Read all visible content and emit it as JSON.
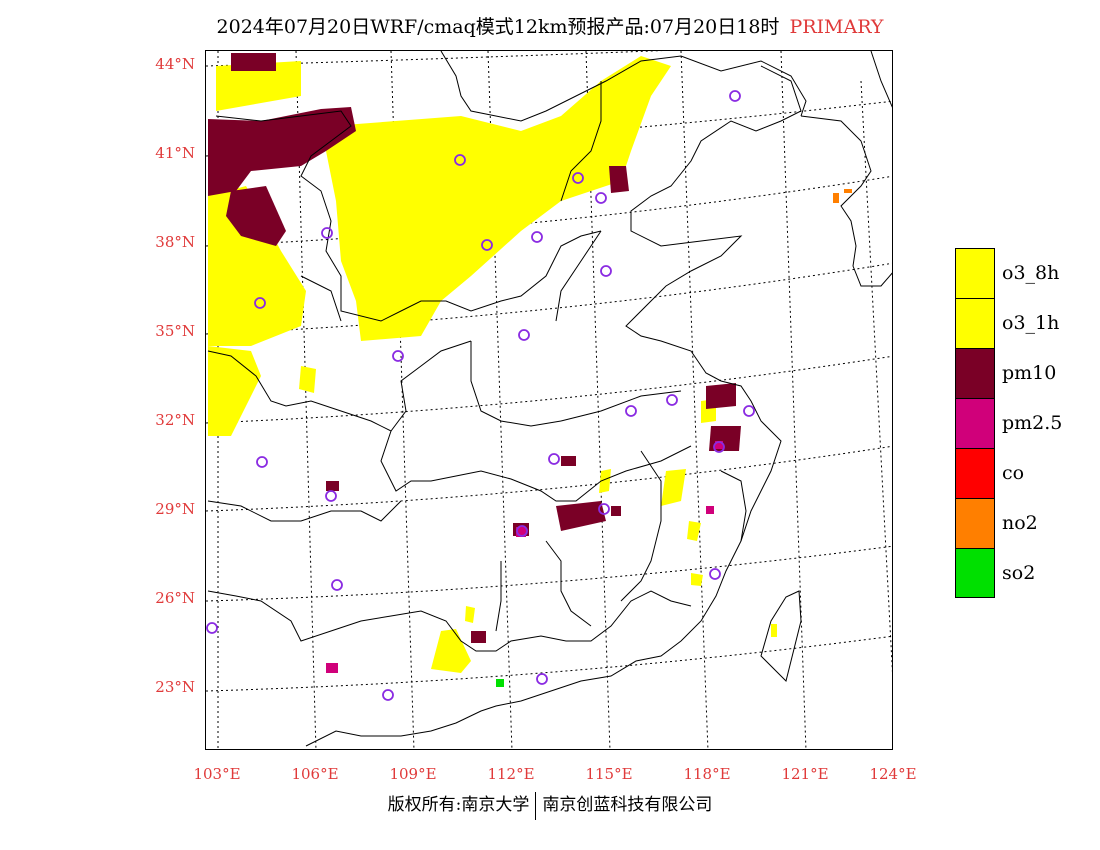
{
  "title": {
    "main": "2024年07月20日WRF/cmaq模式12km预报产品:07月20日18时",
    "tag": "PRIMARY"
  },
  "axes": {
    "lat_labels": [
      "44°N",
      "41°N",
      "38°N",
      "35°N",
      "32°N",
      "29°N",
      "26°N",
      "23°N"
    ],
    "lon_labels": [
      "103°E",
      "106°E",
      "109°E",
      "112°E",
      "115°E",
      "118°E",
      "121°E",
      "124°E"
    ]
  },
  "legend": {
    "items": [
      {
        "label": "o3_8h",
        "color": "#ffff00"
      },
      {
        "label": "o3_1h",
        "color": "#ffff00"
      },
      {
        "label": "pm10",
        "color": "#7a0026"
      },
      {
        "label": "pm2.5",
        "color": "#d0007a"
      },
      {
        "label": "co",
        "color": "#ff0000"
      },
      {
        "label": "no2",
        "color": "#ff7f00"
      },
      {
        "label": "so2",
        "color": "#00e000"
      }
    ]
  },
  "footer": {
    "left": "版权所有:南京大学",
    "right": "南京创蓝科技有限公司"
  }
}
